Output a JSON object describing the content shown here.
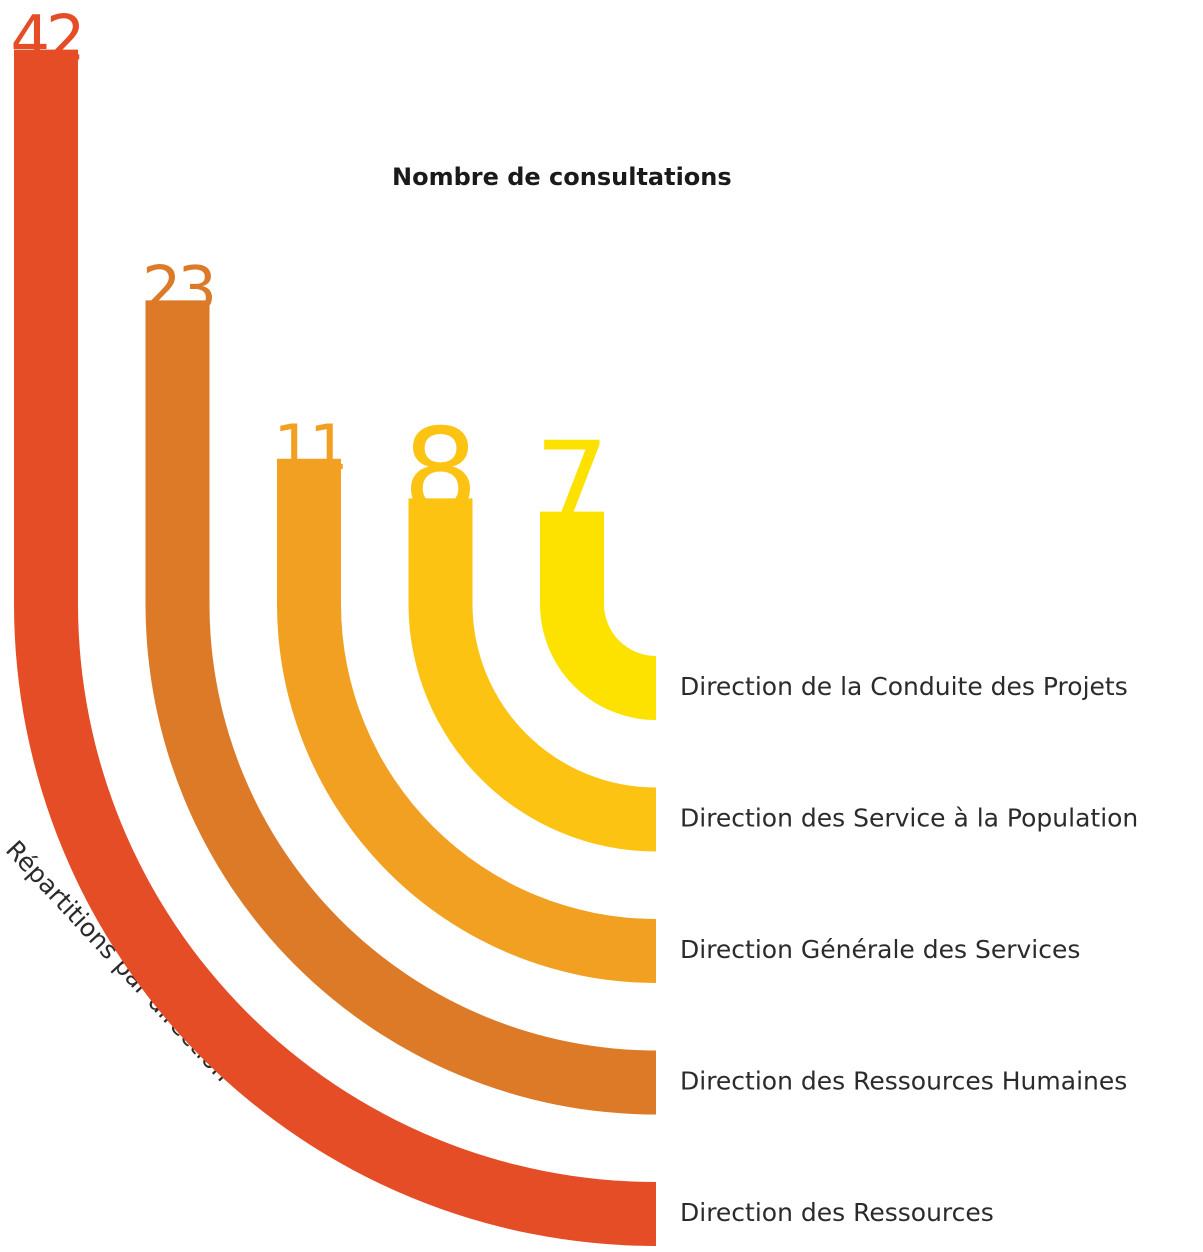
{
  "chart_data": {
    "type": "arc-bar",
    "title": "Nombre de consultations",
    "ylabel": "Répartitions par direction",
    "categories": [
      "Direction des Ressources",
      "Direction des Ressources Humaines",
      "Direction Générale des Services",
      "Direction des Service à la Population",
      "Direction de la Conduite des Projets"
    ],
    "values": [
      42,
      23,
      11,
      8,
      7
    ],
    "colors": [
      "#e44d26",
      "#dc7a28",
      "#f2a021",
      "#fcc312",
      "#fde200"
    ]
  }
}
